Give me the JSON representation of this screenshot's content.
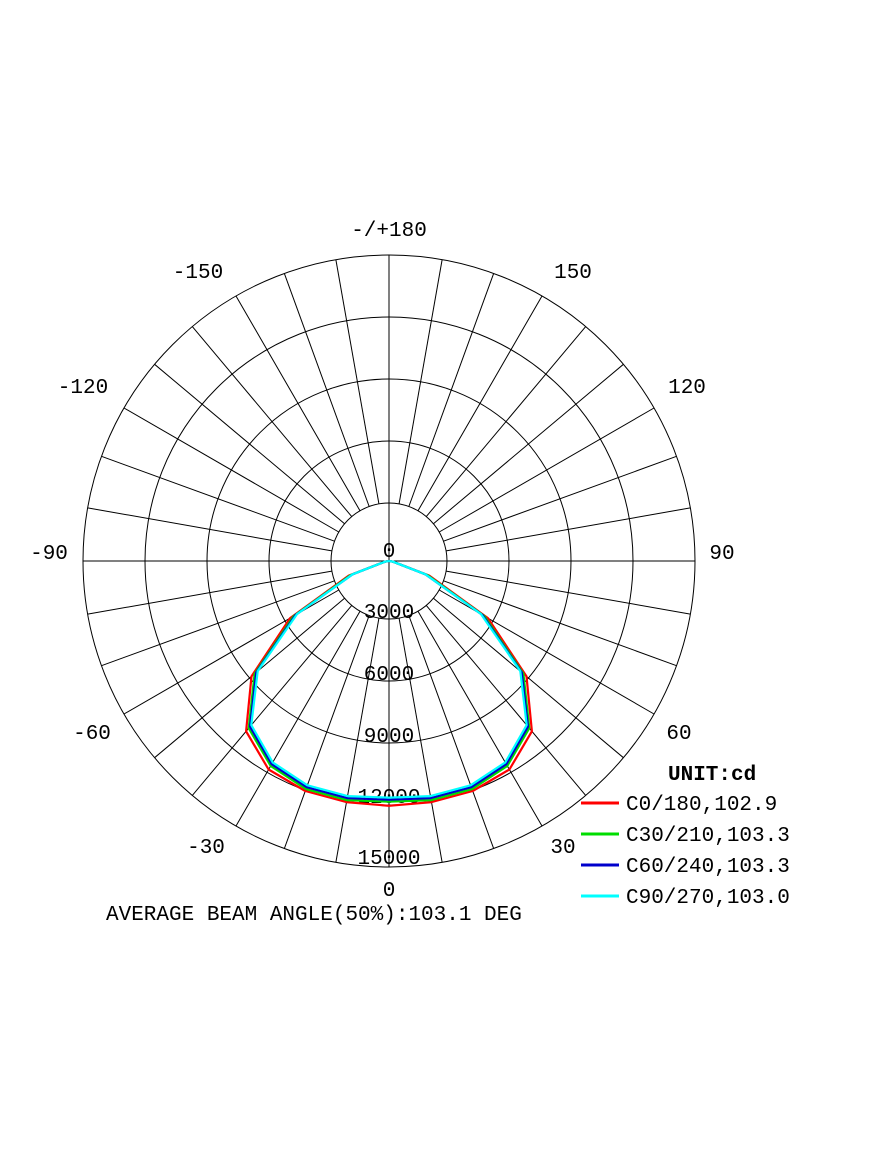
{
  "chart_data": {
    "type": "polar",
    "unit_label": "UNIT:cd",
    "footer": "AVERAGE BEAM ANGLE(50%):103.1 DEG",
    "radial_ticks": [
      "0",
      "3000",
      "6000",
      "9000",
      "12000",
      "15000"
    ],
    "radial_max": 15000,
    "angle_labels": [
      {
        "angle": 180,
        "text": "-/+180"
      },
      {
        "angle": 150,
        "text": "150"
      },
      {
        "angle": 120,
        "text": "120"
      },
      {
        "angle": 90,
        "text": "90"
      },
      {
        "angle": 60,
        "text": "60"
      },
      {
        "angle": 30,
        "text": "30"
      },
      {
        "angle": 0,
        "text": "0"
      },
      {
        "angle": -30,
        "text": "-30"
      },
      {
        "angle": -60,
        "text": "-60"
      },
      {
        "angle": -90,
        "text": "-90"
      },
      {
        "angle": -120,
        "text": "-120"
      },
      {
        "angle": -150,
        "text": "-150"
      }
    ],
    "grid": true,
    "legend_position": "bottom-right",
    "angles": [
      -90,
      -80,
      -70,
      -60,
      -50,
      -40,
      -30,
      -20,
      -10,
      0,
      10,
      20,
      30,
      40,
      50,
      60,
      70,
      80,
      90
    ],
    "series": [
      {
        "name": "C0/180,102.9",
        "color": "#ff0000",
        "values": [
          0,
          200,
          2100,
          5600,
          8800,
          10900,
          11800,
          12000,
          12000,
          12000,
          12000,
          12000,
          11800,
          10900,
          8800,
          5600,
          2100,
          200,
          0
        ]
      },
      {
        "name": "C30/210,103.3",
        "color": "#00dd00",
        "values": [
          0,
          200,
          2000,
          5400,
          8600,
          10700,
          11600,
          11900,
          11900,
          11800,
          11900,
          11900,
          11600,
          10700,
          8600,
          5400,
          2000,
          200,
          0
        ]
      },
      {
        "name": "C60/240,103.3",
        "color": "#0000cc",
        "values": [
          0,
          200,
          1900,
          5300,
          8500,
          10600,
          11500,
          11800,
          11800,
          11700,
          11800,
          11800,
          11500,
          10600,
          8500,
          5300,
          1900,
          200,
          0
        ]
      },
      {
        "name": "C90/270,103.0",
        "color": "#00ffff",
        "values": [
          0,
          200,
          1900,
          5200,
          8400,
          10500,
          11400,
          11700,
          11700,
          11600,
          11700,
          11700,
          11400,
          10500,
          8400,
          5200,
          1900,
          200,
          0
        ]
      }
    ]
  }
}
